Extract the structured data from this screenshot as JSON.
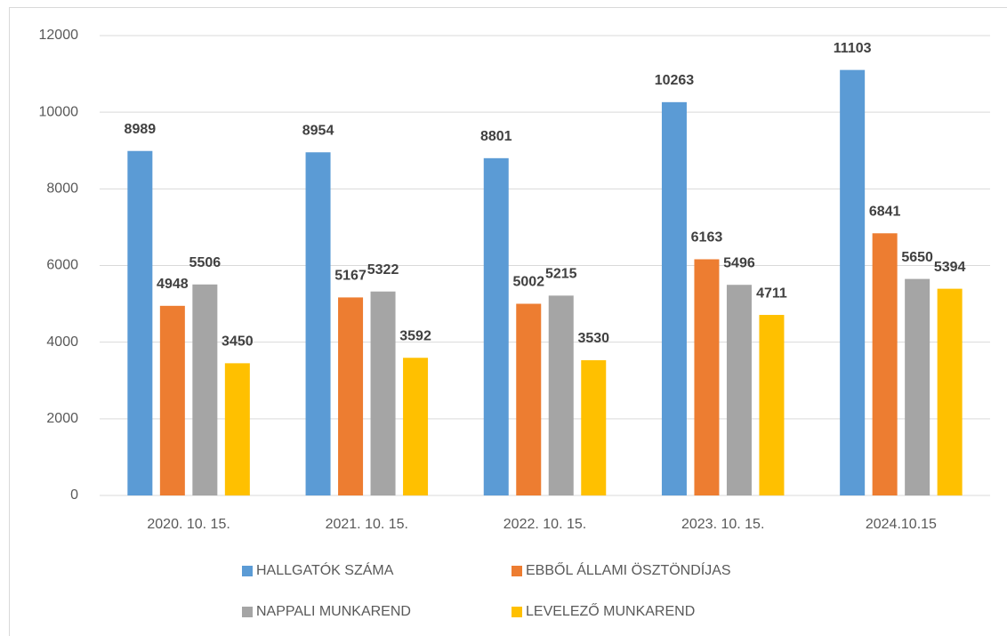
{
  "chart_data": {
    "type": "bar",
    "categories": [
      "2020. 10. 15.",
      "2021. 10. 15.",
      "2022. 10. 15.",
      "2023. 10. 15.",
      "2024.10.15"
    ],
    "series": [
      {
        "name": "HALLGATÓK SZÁMA",
        "color": "#5b9bd5",
        "values": [
          8989,
          8954,
          8801,
          10263,
          11103
        ]
      },
      {
        "name": "EBBŐL ÁLLAMI ÖSZTÖNDÍJAS",
        "color": "#ed7d31",
        "values": [
          4948,
          5167,
          5002,
          6163,
          6841
        ]
      },
      {
        "name": "NAPPALI MUNKAREND",
        "color": "#a5a5a5",
        "values": [
          5506,
          5322,
          5215,
          5496,
          5650
        ]
      },
      {
        "name": "LEVELEZŐ MUNKAREND",
        "color": "#ffc000",
        "values": [
          3450,
          3592,
          3530,
          4711,
          5394
        ]
      }
    ],
    "ylim": [
      0,
      12000
    ],
    "yticks": [
      0,
      2000,
      4000,
      6000,
      8000,
      10000,
      12000
    ],
    "grid": true,
    "legend": "bottom"
  }
}
